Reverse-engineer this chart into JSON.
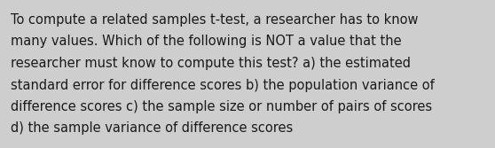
{
  "lines": [
    "To compute a related samples t-test, a researcher has to know",
    "many values. Which of the following is NOT a value that the",
    "researcher must know to compute this test? a) the estimated",
    "standard error for difference scores b) the population variance of",
    "difference scores c) the sample size or number of pairs of scores",
    "d) the sample variance of difference scores"
  ],
  "background_color": "#cecece",
  "text_color": "#1a1a1a",
  "font_size": 10.5,
  "fig_width": 5.58,
  "fig_height": 1.67,
  "dpi": 100
}
